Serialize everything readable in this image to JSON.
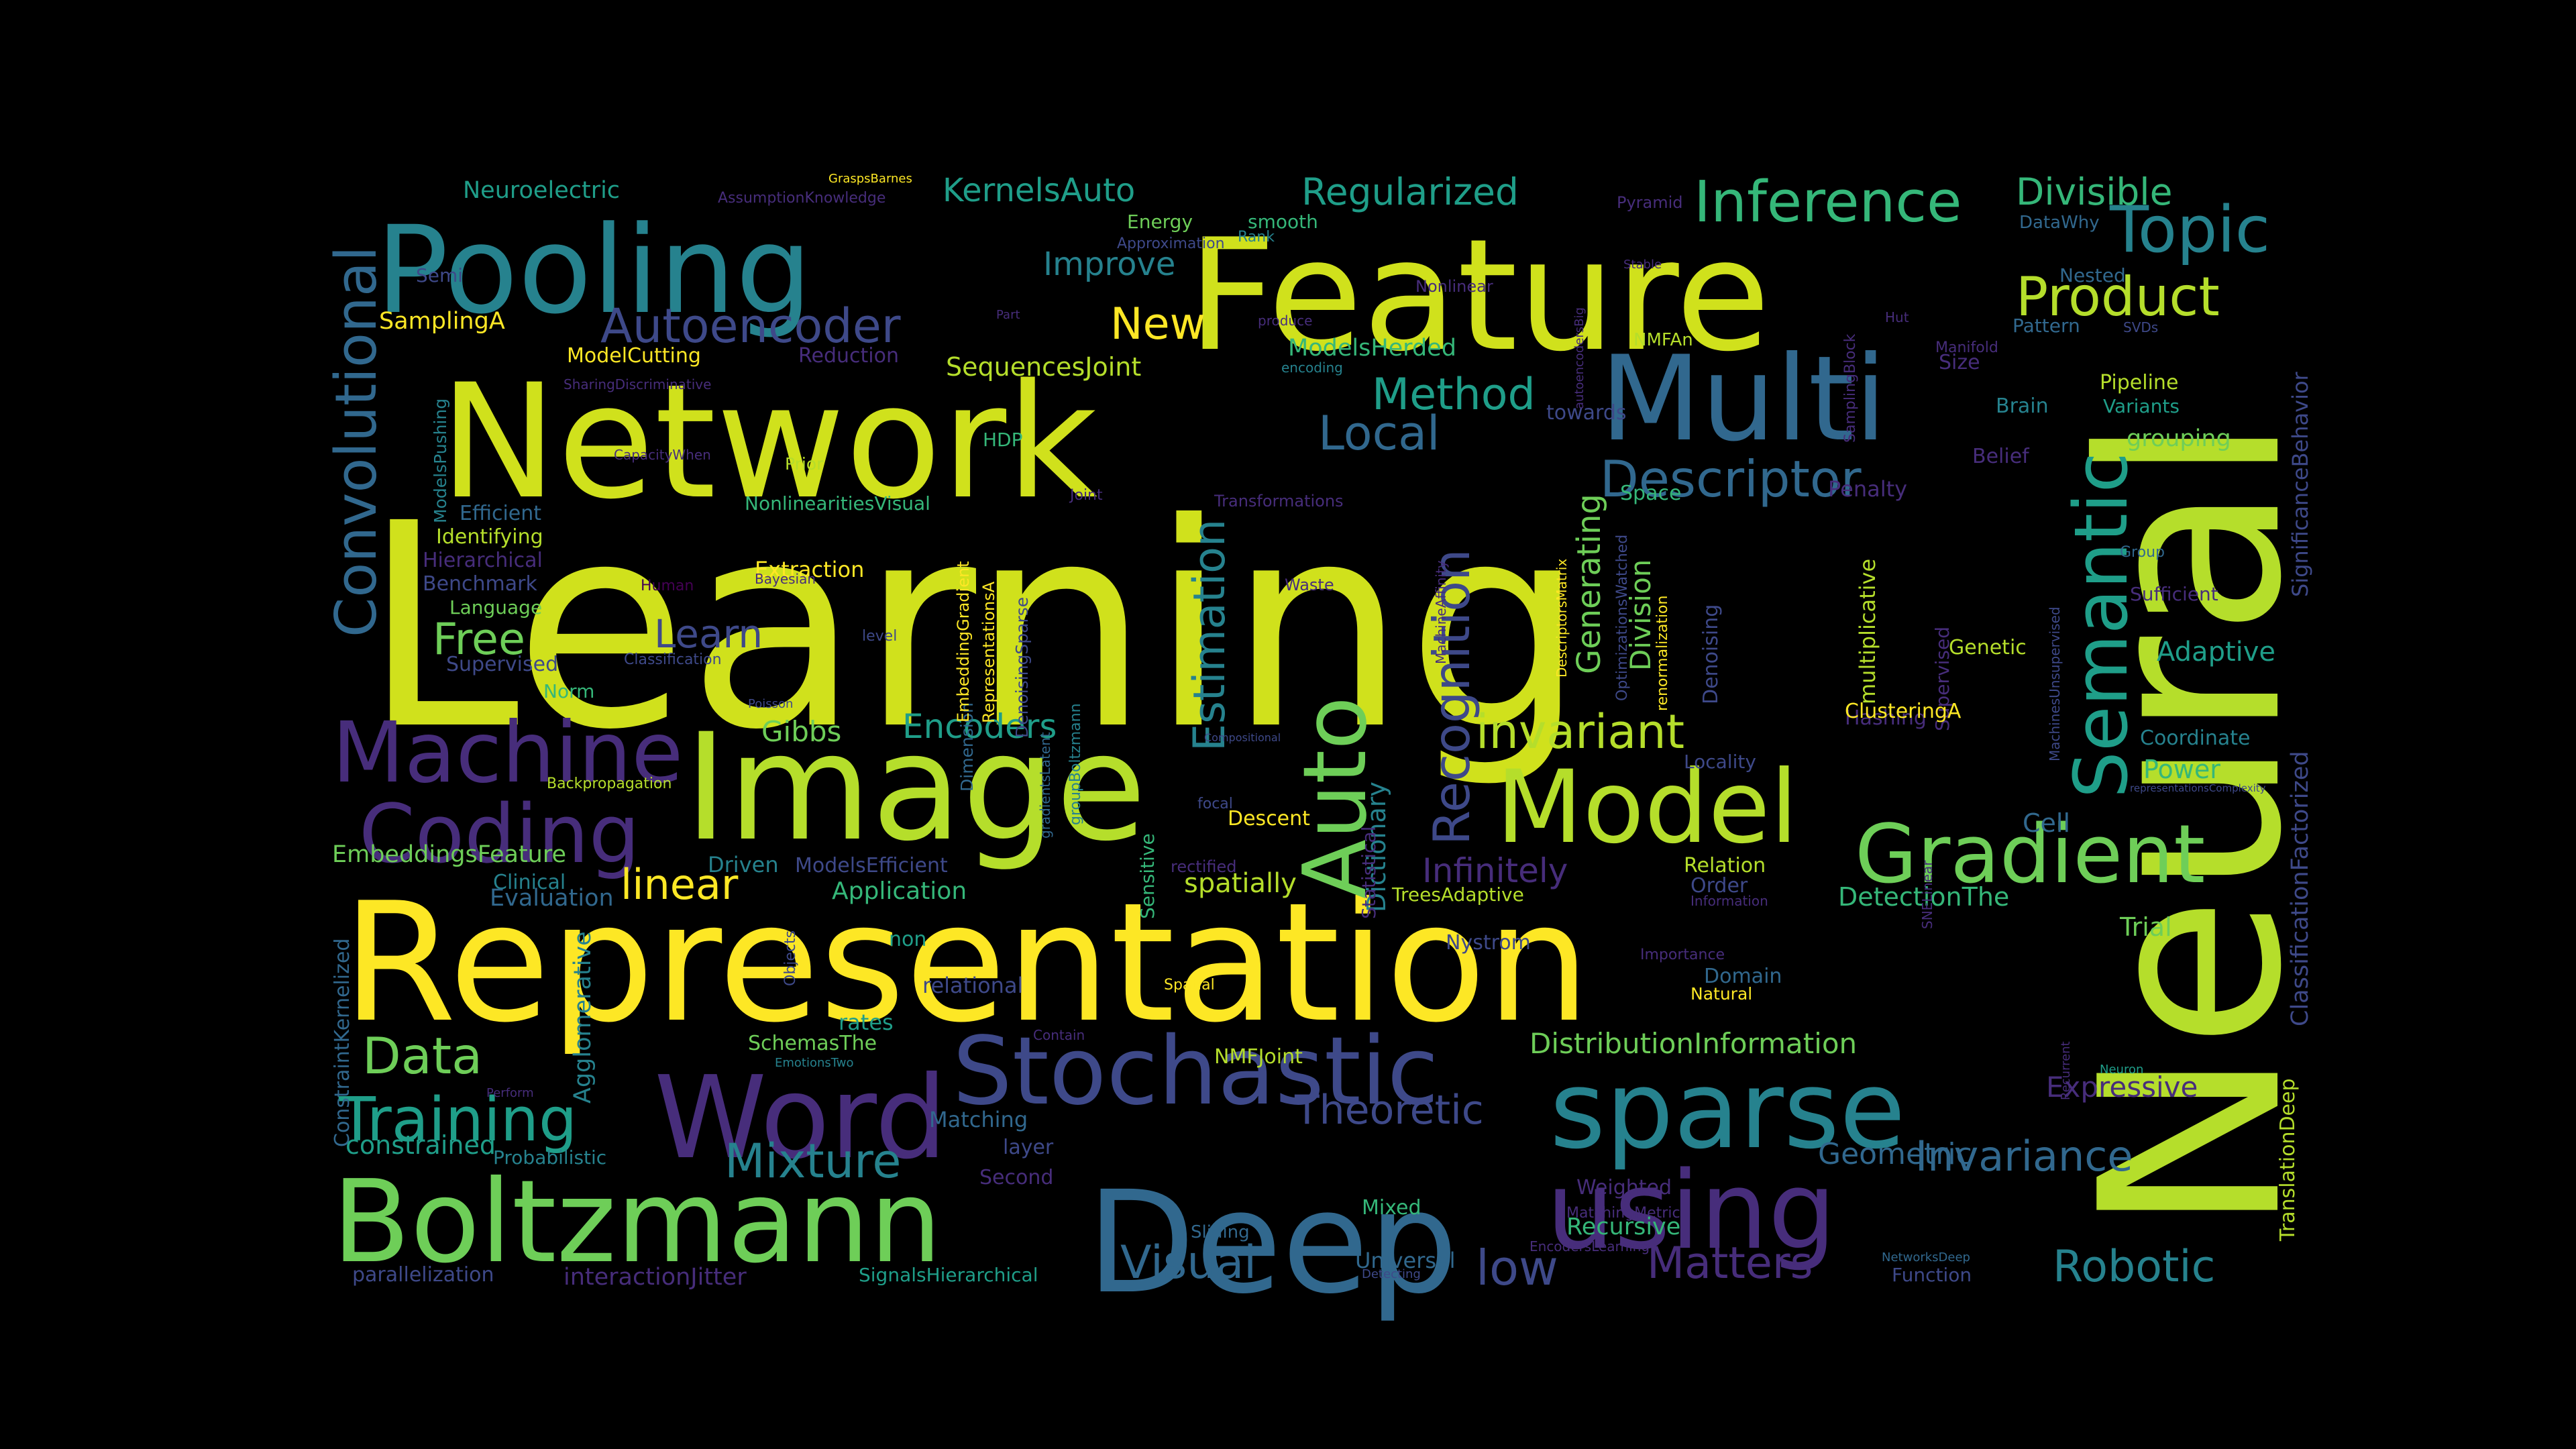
{
  "palette": {
    "yellow": "#fde725",
    "yellow_green": "#d0e11c",
    "lime": "#b5de2b",
    "green": "#6ece58",
    "green_teal": "#3fbc73",
    "teal_green": "#35b779",
    "teal": "#1f9e89",
    "cyan": "#26828e",
    "blue": "#31688e",
    "blue_purple": "#3e4989",
    "indigo": "#472d7b",
    "dark_purple": "#440154"
  },
  "words": [
    {
      "text": "Learning",
      "color": "yellow_green"
    },
    {
      "text": "Neural",
      "color": "lime"
    },
    {
      "text": "Representation",
      "color": "yellow"
    },
    {
      "text": "Network",
      "color": "yellow_green"
    },
    {
      "text": "Feature",
      "color": "yellow_green"
    },
    {
      "text": "Image",
      "color": "lime"
    },
    {
      "text": "Pooling",
      "color": "cyan"
    },
    {
      "text": "Multi",
      "color": "blue"
    },
    {
      "text": "Deep",
      "color": "blue"
    },
    {
      "text": "Boltzmann",
      "color": "green"
    },
    {
      "text": "sparse",
      "color": "cyan"
    },
    {
      "text": "using",
      "color": "indigo"
    },
    {
      "text": "Word",
      "color": "indigo"
    },
    {
      "text": "Model",
      "color": "lime"
    },
    {
      "text": "Auto",
      "color": "green"
    },
    {
      "text": "Stochastic",
      "color": "blue_purple"
    },
    {
      "text": "Machine",
      "color": "indigo"
    },
    {
      "text": "Coding",
      "color": "indigo"
    },
    {
      "text": "Gradient",
      "color": "green"
    },
    {
      "text": "Semantic",
      "color": "teal"
    },
    {
      "text": "Convolutional",
      "color": "blue"
    },
    {
      "text": "Topic",
      "color": "cyan"
    },
    {
      "text": "Inference",
      "color": "teal_green"
    },
    {
      "text": "Training",
      "color": "teal"
    },
    {
      "text": "Product",
      "color": "lime"
    },
    {
      "text": "Autoencoder",
      "color": "blue_purple"
    },
    {
      "text": "Recognition",
      "color": "blue_purple"
    },
    {
      "text": "Descriptor",
      "color": "blue"
    },
    {
      "text": "invariant",
      "color": "lime"
    },
    {
      "text": "Local",
      "color": "blue"
    },
    {
      "text": "Method",
      "color": "teal"
    },
    {
      "text": "Estimation",
      "color": "cyan"
    },
    {
      "text": "Mixture",
      "color": "cyan"
    },
    {
      "text": "Visual",
      "color": "blue"
    },
    {
      "text": "Robotic",
      "color": "cyan"
    },
    {
      "text": "Matters",
      "color": "indigo"
    },
    {
      "text": "Invariance",
      "color": "blue"
    },
    {
      "text": "low",
      "color": "blue_purple"
    },
    {
      "text": "Theoretic",
      "color": "blue_purple"
    },
    {
      "text": "Data",
      "color": "green"
    },
    {
      "text": "Free",
      "color": "green"
    },
    {
      "text": "Learn",
      "color": "blue_purple"
    },
    {
      "text": "linear",
      "color": "yellow"
    },
    {
      "text": "New",
      "color": "yellow"
    },
    {
      "text": "Regularized",
      "color": "teal"
    },
    {
      "text": "Divisible",
      "color": "teal_green"
    },
    {
      "text": "KernelsAuto",
      "color": "teal"
    },
    {
      "text": "Improve",
      "color": "cyan"
    },
    {
      "text": "Encoders",
      "color": "teal"
    },
    {
      "text": "Infinitely",
      "color": "indigo"
    },
    {
      "text": "Generating",
      "color": "green"
    },
    {
      "text": "Division",
      "color": "green"
    },
    {
      "text": "Dictionary",
      "color": "cyan"
    },
    {
      "text": "Expressive",
      "color": "indigo"
    },
    {
      "text": "Adaptive",
      "color": "teal"
    },
    {
      "text": "Geometric",
      "color": "blue"
    },
    {
      "text": "Power",
      "color": "teal_green"
    },
    {
      "text": "Gibbs",
      "color": "green"
    },
    {
      "text": "Application",
      "color": "teal_green"
    },
    {
      "text": "spatially",
      "color": "lime"
    },
    {
      "text": "DetectionThe",
      "color": "teal_green"
    },
    {
      "text": "DistributionInformation",
      "color": "green"
    },
    {
      "text": "SequencesJoint",
      "color": "lime"
    },
    {
      "text": "ModelsHerded",
      "color": "teal_green"
    },
    {
      "text": "SignificanceBehavior",
      "color": "blue_purple"
    },
    {
      "text": "ClassificationFactorized",
      "color": "blue_purple"
    },
    {
      "text": "TranslationDeep",
      "color": "lime"
    },
    {
      "text": "ConstraintKernelized",
      "color": "blue"
    },
    {
      "text": "Nonlinear",
      "color": "indigo"
    },
    {
      "text": "Neuroelectric",
      "color": "teal"
    },
    {
      "text": "SamplingA",
      "color": "yellow"
    },
    {
      "text": "Energy",
      "color": "green"
    },
    {
      "text": "smooth",
      "color": "teal_green"
    },
    {
      "text": "Rank",
      "color": "cyan"
    },
    {
      "text": "Pyramid",
      "color": "indigo"
    },
    {
      "text": "DataWhy",
      "color": "blue"
    },
    {
      "text": "Nested",
      "color": "blue"
    },
    {
      "text": "Pattern",
      "color": "blue"
    },
    {
      "text": "SVDs",
      "color": "blue_purple"
    },
    {
      "text": "Pipeline",
      "color": "lime"
    },
    {
      "text": "Variants",
      "color": "teal"
    },
    {
      "text": "grouping",
      "color": "green"
    },
    {
      "text": "Brain",
      "color": "cyan"
    },
    {
      "text": "Size",
      "color": "indigo"
    },
    {
      "text": "Manifold",
      "color": "indigo"
    },
    {
      "text": "Hut",
      "color": "indigo"
    },
    {
      "text": "SamplingBlock",
      "color": "indigo"
    },
    {
      "text": "NMFAn",
      "color": "lime"
    },
    {
      "text": "autoencodersBig",
      "color": "indigo"
    },
    {
      "text": "Stable",
      "color": "indigo"
    },
    {
      "text": "towards",
      "color": "blue_purple"
    },
    {
      "text": "produce",
      "color": "indigo"
    },
    {
      "text": "encoding",
      "color": "cyan"
    },
    {
      "text": "Reduction",
      "color": "indigo"
    },
    {
      "text": "ModelCutting",
      "color": "yellow"
    },
    {
      "text": "SharingDiscriminative",
      "color": "indigo"
    },
    {
      "text": "ModelsPushing",
      "color": "cyan"
    },
    {
      "text": "CapacityWhen",
      "color": "indigo"
    },
    {
      "text": "HDP",
      "color": "teal_green"
    },
    {
      "text": "Prior",
      "color": "lime"
    },
    {
      "text": "NonlinearitiesVisual",
      "color": "teal_green"
    },
    {
      "text": "Efficient",
      "color": "blue"
    },
    {
      "text": "Identifying",
      "color": "lime"
    },
    {
      "text": "Hierarchical",
      "color": "indigo"
    },
    {
      "text": "Benchmark",
      "color": "blue_purple"
    },
    {
      "text": "Language",
      "color": "green"
    },
    {
      "text": "Supervised",
      "color": "blue_purple"
    },
    {
      "text": "Norm",
      "color": "teal_green"
    },
    {
      "text": "Human",
      "color": "dark_purple"
    },
    {
      "text": "Classification",
      "color": "blue_purple"
    },
    {
      "text": "Extraction",
      "color": "yellow"
    },
    {
      "text": "Bayesian",
      "color": "indigo"
    },
    {
      "text": "level",
      "color": "blue_purple"
    },
    {
      "text": "Poisson",
      "color": "blue_purple"
    },
    {
      "text": "Backpropagation",
      "color": "lime"
    },
    {
      "text": "EmbeddingsFeature",
      "color": "green"
    },
    {
      "text": "Clinical",
      "color": "cyan"
    },
    {
      "text": "Evaluation",
      "color": "blue"
    },
    {
      "text": "Driven",
      "color": "cyan"
    },
    {
      "text": "ModelsEfficient",
      "color": "blue_purple"
    },
    {
      "text": "Agglomerative",
      "color": "cyan"
    },
    {
      "text": "Objects",
      "color": "blue_purple"
    },
    {
      "text": "non",
      "color": "teal"
    },
    {
      "text": "relational",
      "color": "blue_purple"
    },
    {
      "text": "rates",
      "color": "teal"
    },
    {
      "text": "SchemasThe",
      "color": "green"
    },
    {
      "text": "EmotionsTwo",
      "color": "cyan"
    },
    {
      "text": "constrained",
      "color": "teal"
    },
    {
      "text": "Perform",
      "color": "indigo"
    },
    {
      "text": "Probabilistic",
      "color": "cyan"
    },
    {
      "text": "Matching",
      "color": "blue"
    },
    {
      "text": "layer",
      "color": "blue_purple"
    },
    {
      "text": "Second",
      "color": "indigo"
    },
    {
      "text": "parallelization",
      "color": "blue_purple"
    },
    {
      "text": "interactionJitter",
      "color": "indigo"
    },
    {
      "text": "SignalsHierarchical",
      "color": "teal"
    },
    {
      "text": "Universal",
      "color": "blue"
    },
    {
      "text": "Detecting",
      "color": "blue_purple"
    },
    {
      "text": "Mixed",
      "color": "teal_green"
    },
    {
      "text": "Sliding",
      "color": "blue"
    },
    {
      "text": "NMFJoint",
      "color": "lime"
    },
    {
      "text": "Contain",
      "color": "indigo"
    },
    {
      "text": "Spatial",
      "color": "yellow"
    },
    {
      "text": "Statistical",
      "color": "indigo"
    },
    {
      "text": "Sensitive",
      "color": "teal_green"
    },
    {
      "text": "Descent",
      "color": "yellow"
    },
    {
      "text": "rectified",
      "color": "indigo"
    },
    {
      "text": "focal",
      "color": "blue_purple"
    },
    {
      "text": "Compositional",
      "color": "blue_purple"
    },
    {
      "text": "TreesAdaptive",
      "color": "lime"
    },
    {
      "text": "Nystrom",
      "color": "blue_purple"
    },
    {
      "text": "Relation",
      "color": "lime"
    },
    {
      "text": "Order",
      "color": "blue_purple"
    },
    {
      "text": "Information",
      "color": "indigo"
    },
    {
      "text": "SNELinear",
      "color": "indigo"
    },
    {
      "text": "Importance",
      "color": "indigo"
    },
    {
      "text": "Domain",
      "color": "blue"
    },
    {
      "text": "Natural",
      "color": "yellow"
    },
    {
      "text": "Trial",
      "color": "green"
    },
    {
      "text": "Cell",
      "color": "blue"
    },
    {
      "text": "Locality",
      "color": "blue_purple"
    },
    {
      "text": "Coordinate",
      "color": "cyan"
    },
    {
      "text": "Genetic",
      "color": "lime"
    },
    {
      "text": "Hashing",
      "color": "indigo"
    },
    {
      "text": "Sufficient",
      "color": "indigo"
    },
    {
      "text": "Group",
      "color": "blue"
    },
    {
      "text": "Penalty",
      "color": "indigo"
    },
    {
      "text": "Belief",
      "color": "indigo"
    },
    {
      "text": "Space",
      "color": "teal_green"
    },
    {
      "text": "Joint",
      "color": "indigo"
    },
    {
      "text": "Transformations",
      "color": "indigo"
    },
    {
      "text": "Waste",
      "color": "indigo"
    },
    {
      "text": "Approximation",
      "color": "blue_purple"
    },
    {
      "text": "AssumptionKnowledge",
      "color": "indigo"
    },
    {
      "text": "GraspsBarnes",
      "color": "yellow"
    },
    {
      "text": "Part",
      "color": "indigo"
    },
    {
      "text": "Semi",
      "color": "blue_purple"
    },
    {
      "text": "Weighted",
      "color": "indigo"
    },
    {
      "text": "MatchingMetric",
      "color": "indigo"
    },
    {
      "text": "Recursive",
      "color": "teal_green"
    },
    {
      "text": "EncodersLearning",
      "color": "indigo"
    },
    {
      "text": "NetworksDeep",
      "color": "blue"
    },
    {
      "text": "Function",
      "color": "blue_purple"
    },
    {
      "text": "Neuron",
      "color": "teal"
    },
    {
      "text": "Recurrent",
      "color": "indigo"
    },
    {
      "text": "representationsComplexity",
      "color": "blue_purple"
    },
    {
      "text": "MachinesUnsupervised",
      "color": "blue_purple"
    },
    {
      "text": "Supervised",
      "color": "indigo"
    },
    {
      "text": "ClusteringA",
      "color": "yellow"
    },
    {
      "text": "Denoising",
      "color": "blue_purple"
    },
    {
      "text": "multiplicative",
      "color": "lime"
    },
    {
      "text": "renormalization",
      "color": "yellow"
    },
    {
      "text": "OptimizationsWatched",
      "color": "blue_purple"
    },
    {
      "text": "DescriptorsMatrix",
      "color": "yellow"
    },
    {
      "text": "MachineAffinity",
      "color": "indigo"
    },
    {
      "text": "groupBoltzmann",
      "color": "cyan"
    },
    {
      "text": "gradientsLatent",
      "color": "blue"
    },
    {
      "text": "Dimension",
      "color": "blue"
    },
    {
      "text": "EmbeddingGradient",
      "color": "yellow"
    },
    {
      "text": "RepresentationsA",
      "color": "yellow"
    },
    {
      "text": "DenoisingSparse",
      "color": "blue_purple"
    }
  ]
}
